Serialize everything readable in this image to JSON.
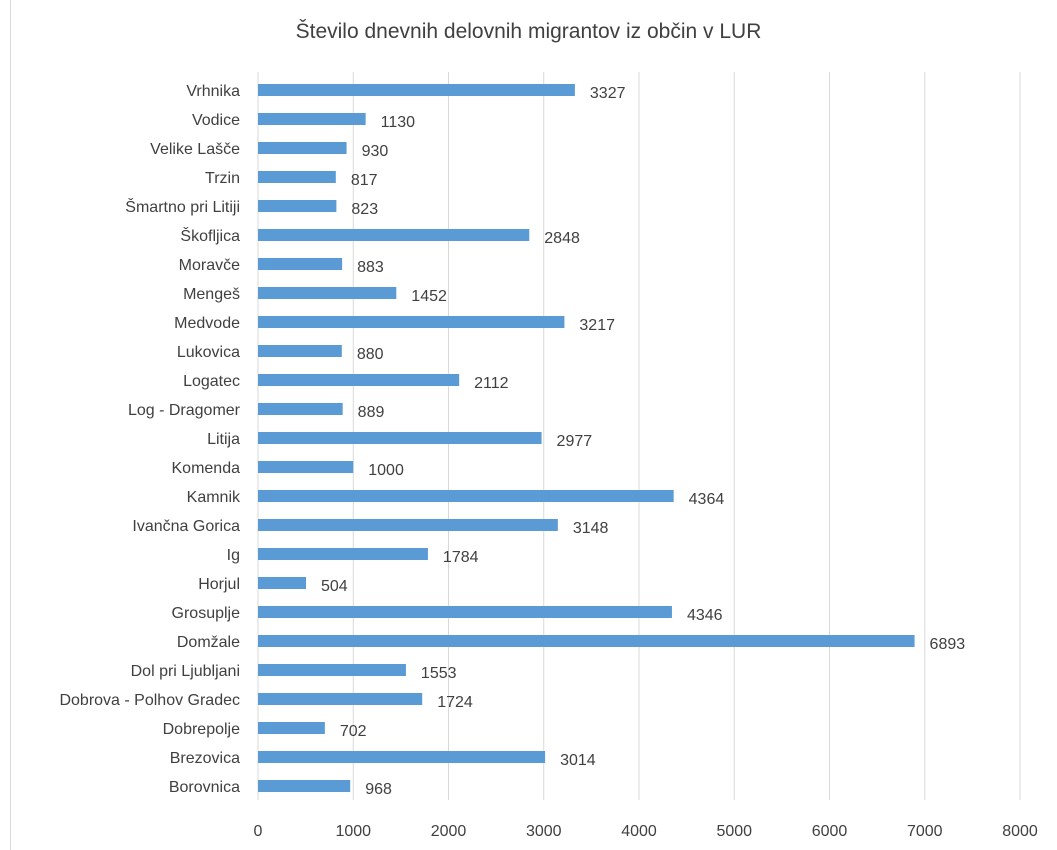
{
  "chart_data": {
    "type": "bar",
    "orientation": "horizontal",
    "title": "Število dnevnih delovnih migrantov iz občin v LUR",
    "xlabel": "",
    "ylabel": "",
    "xlim": [
      0,
      8000
    ],
    "x_ticks": [
      0,
      1000,
      2000,
      3000,
      4000,
      5000,
      6000,
      7000,
      8000
    ],
    "grid": "vertical",
    "legend": "none",
    "bar_color": "#5b9bd5",
    "categories": [
      "Vrhnika",
      "Vodice",
      "Velike Lašče",
      "Trzin",
      "Šmartno pri Litiji",
      "Škofljica",
      "Moravče",
      "Mengeš",
      "Medvode",
      "Lukovica",
      "Logatec",
      "Log - Dragomer",
      "Litija",
      "Komenda",
      "Kamnik",
      "Ivančna Gorica",
      "Ig",
      "Horjul",
      "Grosuplje",
      "Domžale",
      "Dol pri Ljubljani",
      "Dobrova - Polhov Gradec",
      "Dobrepolje",
      "Brezovica",
      "Borovnica"
    ],
    "values": [
      3327,
      1130,
      930,
      817,
      823,
      2848,
      883,
      1452,
      3217,
      880,
      2112,
      889,
      2977,
      1000,
      4364,
      3148,
      1784,
      504,
      4346,
      6893,
      1553,
      1724,
      702,
      3014,
      968
    ]
  }
}
